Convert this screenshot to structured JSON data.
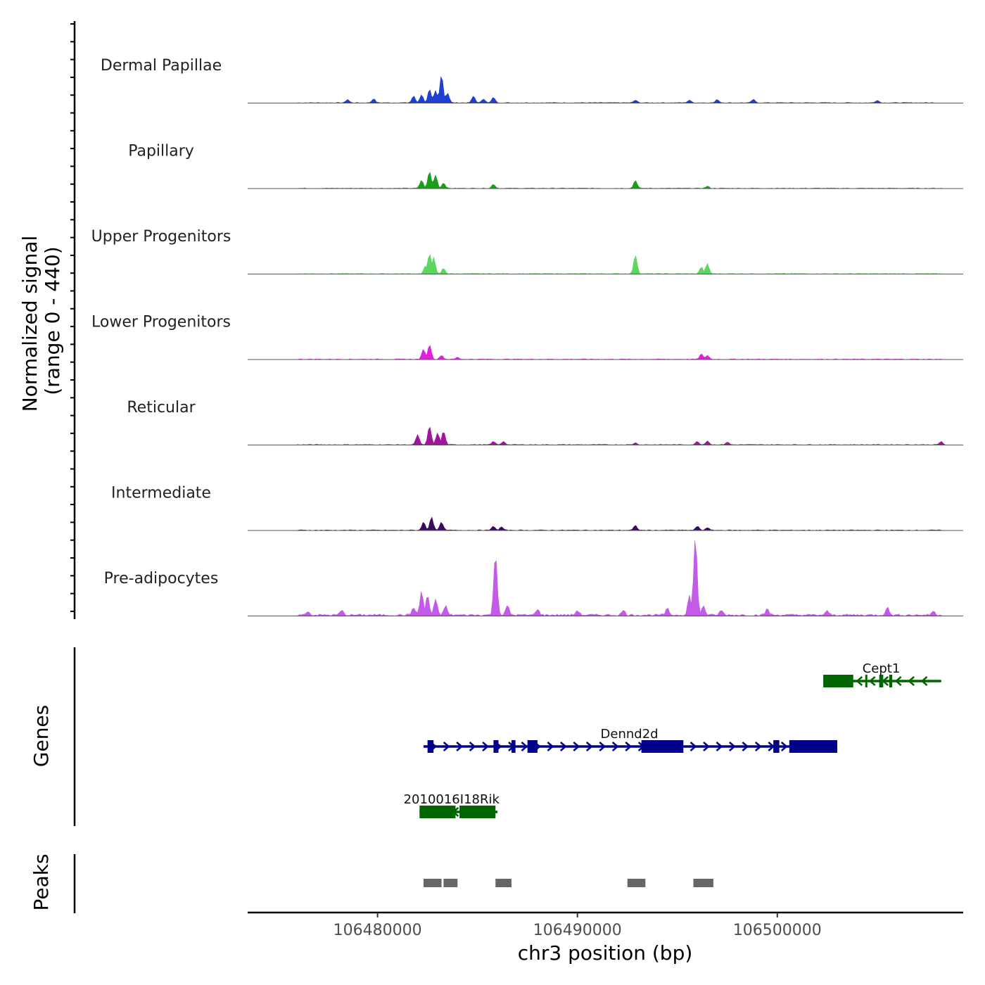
{
  "chart_data": {
    "type": "area",
    "title": "",
    "chromosome": "chr3",
    "xlabel": "chr3 position (bp)",
    "ylabel_line1": "Normalized signal",
    "ylabel_line2": "(range 0 - 440)",
    "xlim": [
      106473500,
      106509300
    ],
    "ylim": [
      0,
      440
    ],
    "x_ticks": [
      106480000,
      106490000,
      106500000
    ],
    "x_tick_labels": [
      "106480000",
      "106490000",
      "106500000"
    ],
    "panels": {
      "genes_label": "Genes",
      "peaks_label": "Peaks"
    },
    "tracks": [
      {
        "name": "Dermal Papillae",
        "color": "#1f3fd1",
        "peaks": [
          [
            106478500,
            0.05
          ],
          [
            106479800,
            0.06
          ],
          [
            106481800,
            0.1
          ],
          [
            106482200,
            0.12
          ],
          [
            106482600,
            0.2
          ],
          [
            106482900,
            0.18
          ],
          [
            106483200,
            0.42
          ],
          [
            106483500,
            0.15
          ],
          [
            106484800,
            0.1
          ],
          [
            106485300,
            0.06
          ],
          [
            106485800,
            0.08
          ],
          [
            106492900,
            0.04
          ],
          [
            106495600,
            0.04
          ],
          [
            106497000,
            0.05
          ],
          [
            106498800,
            0.05
          ],
          [
            106505000,
            0.04
          ]
        ]
      },
      {
        "name": "Papillary",
        "color": "#1a9e1a",
        "peaks": [
          [
            106482200,
            0.12
          ],
          [
            106482600,
            0.25
          ],
          [
            106482900,
            0.2
          ],
          [
            106483300,
            0.08
          ],
          [
            106485800,
            0.06
          ],
          [
            106492900,
            0.12
          ],
          [
            106496500,
            0.03
          ]
        ]
      },
      {
        "name": "Upper Progenitors",
        "color": "#5cd65c",
        "peaks": [
          [
            106482400,
            0.12
          ],
          [
            106482600,
            0.3
          ],
          [
            106482800,
            0.25
          ],
          [
            106483300,
            0.08
          ],
          [
            106492900,
            0.28
          ],
          [
            106496200,
            0.1
          ],
          [
            106496500,
            0.15
          ]
        ]
      },
      {
        "name": "Lower Progenitors",
        "color": "#e31ee3",
        "peaks": [
          [
            106482300,
            0.15
          ],
          [
            106482600,
            0.22
          ],
          [
            106483200,
            0.06
          ],
          [
            106484000,
            0.03
          ],
          [
            106496200,
            0.08
          ],
          [
            106496500,
            0.06
          ]
        ]
      },
      {
        "name": "Reticular",
        "color": "#a0159e",
        "peaks": [
          [
            106482000,
            0.15
          ],
          [
            106482600,
            0.28
          ],
          [
            106483000,
            0.18
          ],
          [
            106483300,
            0.2
          ],
          [
            106485800,
            0.05
          ],
          [
            106486300,
            0.05
          ],
          [
            106492900,
            0.03
          ],
          [
            106496000,
            0.05
          ],
          [
            106496500,
            0.06
          ],
          [
            106497500,
            0.04
          ],
          [
            106508200,
            0.05
          ]
        ]
      },
      {
        "name": "Intermediate",
        "color": "#3b0a5c",
        "peaks": [
          [
            106482300,
            0.12
          ],
          [
            106482700,
            0.2
          ],
          [
            106483200,
            0.12
          ],
          [
            106485800,
            0.06
          ],
          [
            106486200,
            0.05
          ],
          [
            106492900,
            0.07
          ],
          [
            106496000,
            0.06
          ],
          [
            106496500,
            0.04
          ]
        ]
      },
      {
        "name": "Pre-adipocytes",
        "color": "#c45be8",
        "peaks": [
          [
            106476500,
            0.05
          ],
          [
            106478200,
            0.06
          ],
          [
            106481800,
            0.1
          ],
          [
            106482200,
            0.3
          ],
          [
            106482500,
            0.25
          ],
          [
            106482900,
            0.2
          ],
          [
            106483400,
            0.12
          ],
          [
            106485900,
            0.78
          ],
          [
            106486500,
            0.12
          ],
          [
            106488000,
            0.08
          ],
          [
            106490000,
            0.06
          ],
          [
            106492300,
            0.06
          ],
          [
            106494500,
            0.08
          ],
          [
            106495600,
            0.25
          ],
          [
            106495900,
            1.0
          ],
          [
            106496300,
            0.12
          ],
          [
            106497200,
            0.06
          ],
          [
            106499500,
            0.08
          ],
          [
            106502500,
            0.05
          ],
          [
            106505500,
            0.1
          ],
          [
            106507800,
            0.05
          ]
        ]
      }
    ],
    "genes": [
      {
        "name": "Cept1",
        "strand": "-",
        "color": "#006400",
        "start": 106502300,
        "end": 106508200,
        "row": 0,
        "label_x": 106505200,
        "exons": [
          [
            106502300,
            106503800
          ],
          [
            106504400,
            106504500
          ],
          [
            106505100,
            106505300
          ],
          [
            106505600,
            106505750
          ]
        ]
      },
      {
        "name": "Dennd2d",
        "strand": "+",
        "color": "#00008b",
        "start": 106482300,
        "end": 106503000,
        "row": 1,
        "label_x": 106492600,
        "exons": [
          [
            106482500,
            106482800
          ],
          [
            106485800,
            106486050
          ],
          [
            106486700,
            106486900
          ],
          [
            106487500,
            106488000
          ],
          [
            106493200,
            106495300
          ],
          [
            106499800,
            106500100
          ],
          [
            106500600,
            106503000
          ]
        ]
      },
      {
        "name": "2010016I18Rik",
        "strand": "-",
        "color": "#006400",
        "start": 106482100,
        "end": 106486000,
        "row": 2,
        "label_x": 106483700,
        "exons": [
          [
            106482100,
            106483900
          ],
          [
            106484100,
            106485900
          ]
        ]
      }
    ],
    "peak_regions": [
      [
        106482300,
        106483200
      ],
      [
        106483300,
        106484000
      ],
      [
        106485900,
        106486700
      ],
      [
        106492500,
        106493400
      ],
      [
        106495800,
        106496800
      ]
    ]
  }
}
